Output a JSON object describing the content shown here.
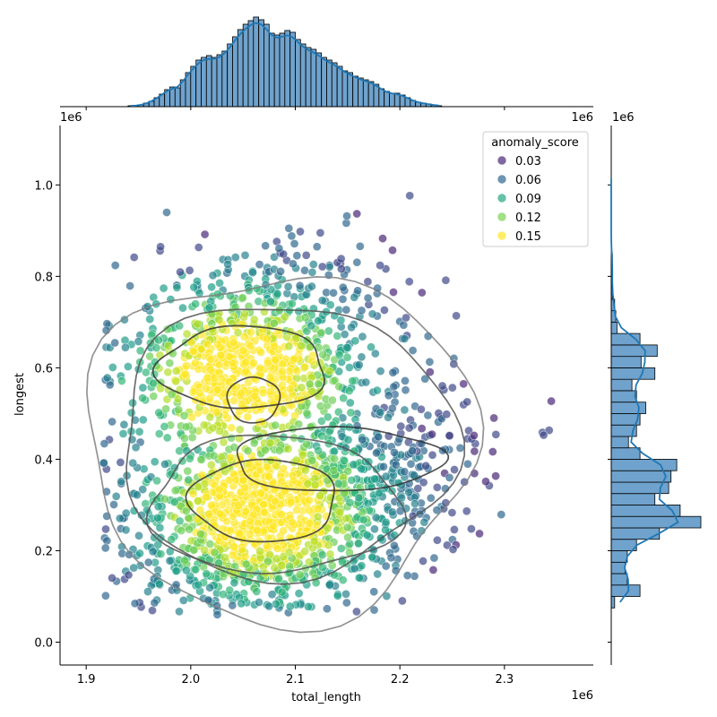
{
  "chart_data": {
    "type": "scatter",
    "title": "",
    "xlabel": "total_length",
    "ylabel": "longest",
    "x_offset_label": "1e6",
    "y_offset_label": "1e6",
    "xlim": [
      1.875,
      2.385
    ],
    "ylim": [
      -0.05,
      1.13
    ],
    "xticks": [
      "1.9",
      "2.0",
      "2.1",
      "2.2",
      "2.3"
    ],
    "xtick_values": [
      1.9,
      2.0,
      2.1,
      2.2,
      2.3
    ],
    "yticks": [
      "0.0",
      "0.2",
      "0.4",
      "0.6",
      "0.8",
      "1.0"
    ],
    "ytick_values": [
      0.0,
      0.2,
      0.4,
      0.6,
      0.8,
      1.0
    ],
    "hue": "anomaly_score",
    "legend": {
      "title": "anomaly_score",
      "position": "top-right",
      "entries": [
        {
          "label": "0.03",
          "color": "#482878"
        },
        {
          "label": "0.06",
          "color": "#31688e"
        },
        {
          "label": "0.09",
          "color": "#26a685"
        },
        {
          "label": "0.12",
          "color": "#7ad151"
        },
        {
          "label": "0.15",
          "color": "#fde725"
        }
      ]
    },
    "marginal_x_hist": {
      "bin_start": 1.94,
      "bin_width": 0.005,
      "counts": [
        1,
        1,
        2,
        4,
        6,
        10,
        14,
        19,
        22,
        21,
        30,
        38,
        45,
        52,
        55,
        57,
        55,
        58,
        62,
        70,
        78,
        86,
        92,
        96,
        100,
        97,
        92,
        82,
        80,
        82,
        85,
        83,
        75,
        70,
        66,
        64,
        60,
        55,
        52,
        49,
        45,
        40,
        38,
        34,
        32,
        30,
        28,
        25,
        20,
        17,
        15,
        15,
        13,
        10,
        7,
        5,
        4,
        3,
        2,
        1
      ],
      "kde_color": "#1f77b4",
      "bar_color": "#6fa2cc"
    },
    "marginal_y_hist": {
      "bins": [
        {
          "y": 0.075,
          "count": 3
        },
        {
          "y": 0.1,
          "count": 25
        },
        {
          "y": 0.125,
          "count": 14
        },
        {
          "y": 0.15,
          "count": 12
        },
        {
          "y": 0.175,
          "count": 14
        },
        {
          "y": 0.2,
          "count": 22
        },
        {
          "y": 0.225,
          "count": 42
        },
        {
          "y": 0.25,
          "count": 78
        },
        {
          "y": 0.275,
          "count": 60
        },
        {
          "y": 0.3,
          "count": 38
        },
        {
          "y": 0.325,
          "count": 50
        },
        {
          "y": 0.35,
          "count": 52
        },
        {
          "y": 0.375,
          "count": 57
        },
        {
          "y": 0.4,
          "count": 25
        },
        {
          "y": 0.425,
          "count": 15
        },
        {
          "y": 0.45,
          "count": 22
        },
        {
          "y": 0.475,
          "count": 25
        },
        {
          "y": 0.5,
          "count": 30
        },
        {
          "y": 0.525,
          "count": 22
        },
        {
          "y": 0.55,
          "count": 18
        },
        {
          "y": 0.575,
          "count": 38
        },
        {
          "y": 0.6,
          "count": 26
        },
        {
          "y": 0.625,
          "count": 40
        },
        {
          "y": 0.65,
          "count": 25
        },
        {
          "y": 0.675,
          "count": 5
        },
        {
          "y": 0.7,
          "count": 4
        },
        {
          "y": 0.725,
          "count": 3
        },
        {
          "y": 0.75,
          "count": 1
        },
        {
          "y": 0.775,
          "count": 1
        },
        {
          "y": 0.8,
          "count": 1
        },
        {
          "y": 0.825,
          "count": 1
        },
        {
          "y": 0.85,
          "count": 0
        },
        {
          "y": 0.875,
          "count": 0
        },
        {
          "y": 0.9,
          "count": 0
        },
        {
          "y": 0.925,
          "count": 0
        },
        {
          "y": 0.95,
          "count": 0
        },
        {
          "y": 0.975,
          "count": 0
        },
        {
          "y": 1.0,
          "count": 0
        }
      ],
      "bin_height": 0.025
    },
    "clusters": [
      {
        "cx": 2.07,
        "cy": 0.29,
        "sx": 0.065,
        "sy": 0.09,
        "n": 900
      },
      {
        "cx": 2.05,
        "cy": 0.6,
        "sx": 0.055,
        "sy": 0.09,
        "n": 650
      },
      {
        "cx": 2.17,
        "cy": 0.4,
        "sx": 0.06,
        "sy": 0.1,
        "n": 350
      },
      {
        "cx": 2.05,
        "cy": 0.15,
        "sx": 0.06,
        "sy": 0.045,
        "n": 220
      },
      {
        "cx": 2.1,
        "cy": 0.75,
        "sx": 0.06,
        "sy": 0.08,
        "n": 180
      }
    ],
    "kde_contours": [
      {
        "cx": 2.085,
        "cy": 0.43,
        "rx": 0.185,
        "ry": 0.38,
        "wob": 0.06
      },
      {
        "cx": 2.09,
        "cy": 0.44,
        "rx": 0.16,
        "ry": 0.3,
        "wob": 0.05
      },
      {
        "cx": 2.08,
        "cy": 0.3,
        "rx": 0.12,
        "ry": 0.15,
        "wob": 0.05
      },
      {
        "cx": 2.05,
        "cy": 0.6,
        "rx": 0.08,
        "ry": 0.09,
        "wob": 0.05
      },
      {
        "cx": 2.07,
        "cy": 0.31,
        "rx": 0.07,
        "ry": 0.09,
        "wob": 0.04
      },
      {
        "cx": 2.06,
        "cy": 0.53,
        "rx": 0.025,
        "ry": 0.05,
        "wob": 0.03
      },
      {
        "cx": 2.14,
        "cy": 0.4,
        "rx": 0.1,
        "ry": 0.07,
        "wob": 0.04
      }
    ]
  }
}
